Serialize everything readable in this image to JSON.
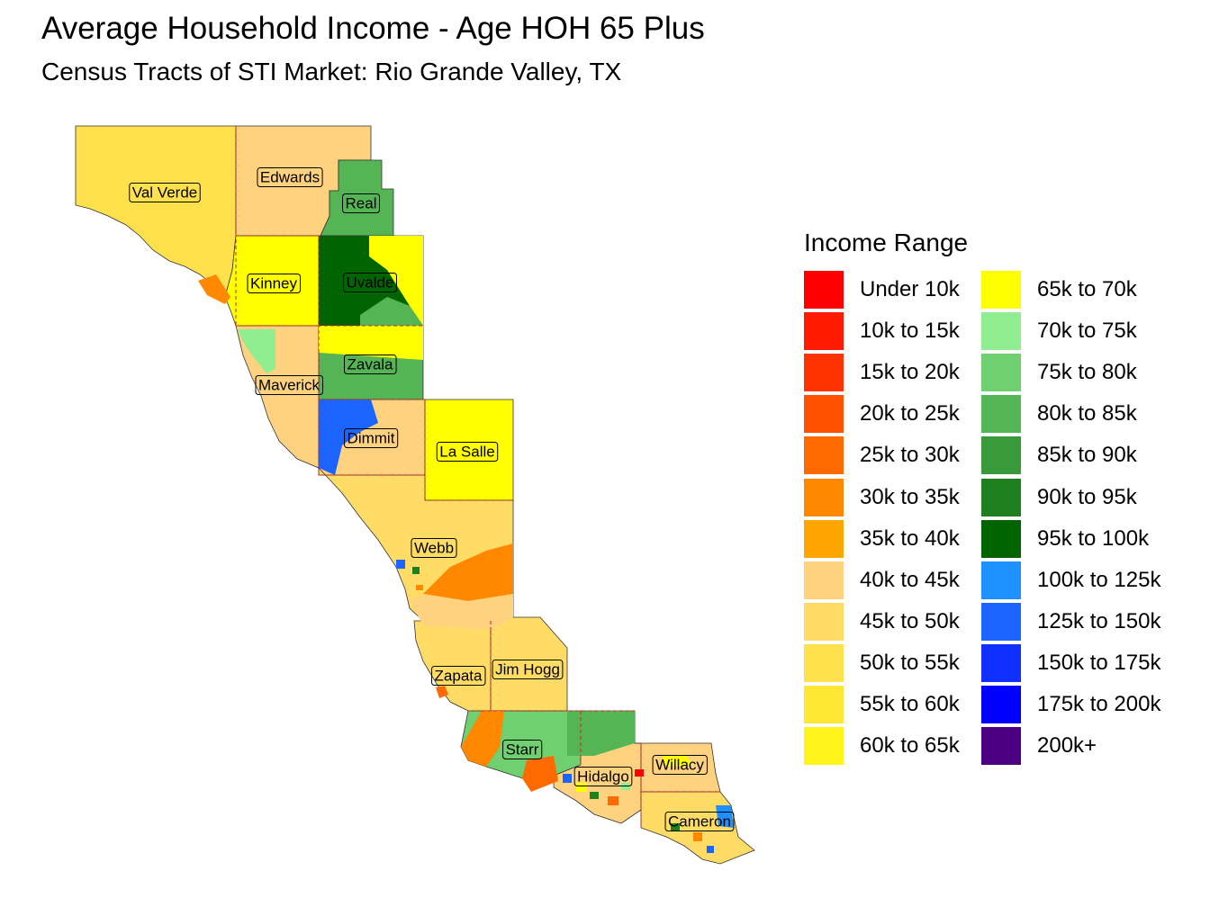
{
  "title": "Average Household Income - Age HOH 65 Plus",
  "subtitle": "Census Tracts of STI Market: Rio Grande Valley, TX",
  "legend": {
    "title": "Income Range",
    "items": [
      {
        "label": "Under 10k",
        "color": "#ff0000"
      },
      {
        "label": "10k to 15k",
        "color": "#ff1a00"
      },
      {
        "label": "15k to 20k",
        "color": "#ff3300"
      },
      {
        "label": "20k to 25k",
        "color": "#ff5000"
      },
      {
        "label": "25k to 30k",
        "color": "#ff6a00"
      },
      {
        "label": "30k to 35k",
        "color": "#ff8800"
      },
      {
        "label": "35k to 40k",
        "color": "#ffa500"
      },
      {
        "label": "40k to 45k",
        "color": "#ffd27f"
      },
      {
        "label": "45k to 50k",
        "color": "#ffdc66"
      },
      {
        "label": "50k to 55k",
        "color": "#ffe14d"
      },
      {
        "label": "55k to 60k",
        "color": "#ffe833"
      },
      {
        "label": "60k to 65k",
        "color": "#fff41a"
      },
      {
        "label": "65k to 70k",
        "color": "#ffff00"
      },
      {
        "label": "70k to 75k",
        "color": "#90ee90"
      },
      {
        "label": "75k to 80k",
        "color": "#70d070"
      },
      {
        "label": "80k to 85k",
        "color": "#55b555"
      },
      {
        "label": "85k to 90k",
        "color": "#3a9a3a"
      },
      {
        "label": "90k to 95k",
        "color": "#1f7f1f"
      },
      {
        "label": "95k to 100k",
        "color": "#006400"
      },
      {
        "label": "100k to 125k",
        "color": "#1e90ff"
      },
      {
        "label": "125k to 150k",
        "color": "#1c64ff"
      },
      {
        "label": "150k to 175k",
        "color": "#1030ff"
      },
      {
        "label": "175k to 200k",
        "color": "#0000ff"
      },
      {
        "label": "200k+",
        "color": "#4b0082"
      }
    ]
  },
  "counties": [
    {
      "name": "Val Verde",
      "color": "#ffe14d"
    },
    {
      "name": "Edwards",
      "color": "#ffd27f"
    },
    {
      "name": "Real",
      "color": "#55b555"
    },
    {
      "name": "Kinney",
      "color": "#ffff00"
    },
    {
      "name": "Uvalde",
      "color": "#006400"
    },
    {
      "name": "Zavala",
      "color": "#55b555"
    },
    {
      "name": "Maverick",
      "color": "#ffd27f"
    },
    {
      "name": "Dimmit",
      "color": "#ffd27f"
    },
    {
      "name": "La Salle",
      "color": "#ffff00"
    },
    {
      "name": "Webb",
      "color": "#ffdc66"
    },
    {
      "name": "Zapata",
      "color": "#ffdc66"
    },
    {
      "name": "Jim Hogg",
      "color": "#ffdc66"
    },
    {
      "name": "Starr",
      "color": "#70d070"
    },
    {
      "name": "Hidalgo",
      "color": "#ffd27f"
    },
    {
      "name": "Willacy",
      "color": "#ffd27f"
    },
    {
      "name": "Cameron",
      "color": "#ffdc66"
    }
  ]
}
